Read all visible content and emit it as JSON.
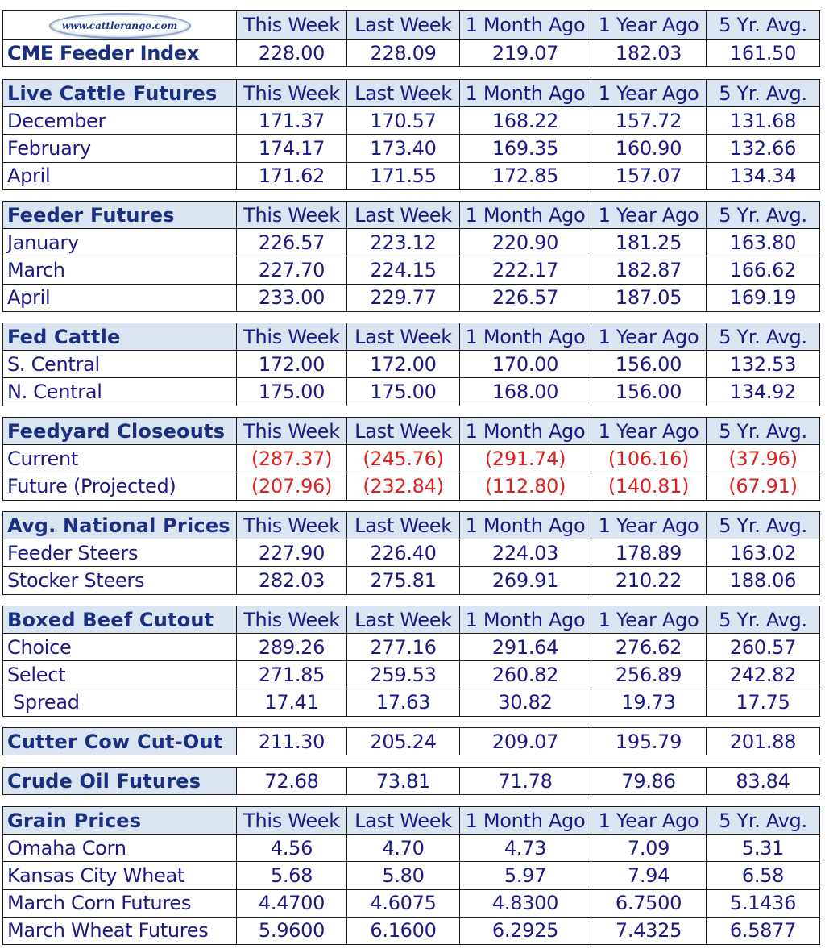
{
  "logo_text": "www.cattlerange.com",
  "colors": {
    "header_bg": "#dbe4f1",
    "text": "#1a1a86",
    "title": "#1a2f80",
    "negative": "#e02020"
  },
  "sections": [
    {
      "title": "CME Feeder Index",
      "headers": [
        "This Week",
        "Last Week",
        "1 Month Ago",
        "1 Year Ago",
        "5 Yr. Avg."
      ],
      "rows": [],
      "title_values": [
        "228.00",
        "228.09",
        "219.07",
        "182.03",
        "161.50"
      ]
    },
    {
      "title": "Live Cattle Futures",
      "headers": [
        "This Week",
        "Last Week",
        "1 Month Ago",
        "1 Year Ago",
        "5 Yr. Avg."
      ],
      "rows": [
        {
          "label": "December",
          "values": [
            "171.37",
            "170.57",
            "168.22",
            "157.72",
            "131.68"
          ]
        },
        {
          "label": "February",
          "values": [
            "174.17",
            "173.40",
            "169.35",
            "160.90",
            "132.66"
          ]
        },
        {
          "label": "April",
          "values": [
            "171.62",
            "171.55",
            "172.85",
            "157.07",
            "134.34"
          ]
        }
      ]
    },
    {
      "title": "Feeder Futures",
      "headers": [
        "This Week",
        "Last Week",
        "1 Month Ago",
        "1 Year Ago",
        "5 Yr. Avg."
      ],
      "rows": [
        {
          "label": "January",
          "values": [
            "226.57",
            "223.12",
            "220.90",
            "181.25",
            "163.80"
          ]
        },
        {
          "label": "March",
          "values": [
            "227.70",
            "224.15",
            "222.17",
            "182.87",
            "166.62"
          ]
        },
        {
          "label": "April",
          "values": [
            "233.00",
            "229.77",
            "226.57",
            "187.05",
            "169.19"
          ]
        }
      ]
    },
    {
      "title": "Fed Cattle",
      "headers": [
        "This Week",
        "Last Week",
        "1 Month Ago",
        "1 Year Ago",
        "5 Yr. Avg."
      ],
      "rows": [
        {
          "label": "S. Central",
          "values": [
            "172.00",
            "172.00",
            "170.00",
            "156.00",
            "132.53"
          ]
        },
        {
          "label": "N. Central",
          "values": [
            "175.00",
            "175.00",
            "168.00",
            "156.00",
            "134.92"
          ]
        }
      ]
    },
    {
      "title": "Feedyard Closeouts",
      "headers": [
        "This Week",
        "Last Week",
        "1 Month Ago",
        "1 Year Ago",
        "5 Yr. Avg."
      ],
      "rows": [
        {
          "label": "Current",
          "values": [
            "(287.37)",
            "(245.76)",
            "(291.74)",
            "(106.16)",
            "(37.96)"
          ],
          "negative": true
        },
        {
          "label": "Future (Projected)",
          "values": [
            "(207.96)",
            "(232.84)",
            "(112.80)",
            "(140.81)",
            "(67.91)"
          ],
          "negative": true
        }
      ]
    },
    {
      "title": "Avg. National Prices",
      "headers": [
        "This Week",
        "Last Week",
        "1 Month Ago",
        "1 Year Ago",
        "5 Yr. Avg."
      ],
      "rows": [
        {
          "label": "Feeder Steers",
          "values": [
            "227.90",
            "226.40",
            "224.03",
            "178.89",
            "163.02"
          ]
        },
        {
          "label": "Stocker Steers",
          "values": [
            "282.03",
            "275.81",
            "269.91",
            "210.22",
            "188.06"
          ]
        }
      ]
    },
    {
      "title": "Boxed Beef Cutout",
      "headers": [
        "This Week",
        "Last Week",
        "1 Month Ago",
        "1 Year Ago",
        "5 Yr. Avg."
      ],
      "rows": [
        {
          "label": "Choice",
          "values": [
            "289.26",
            "277.16",
            "291.64",
            "276.62",
            "260.57"
          ]
        },
        {
          "label": "Select",
          "values": [
            "271.85",
            "259.53",
            "260.82",
            "256.89",
            "242.82"
          ]
        },
        {
          "label": "Spread",
          "values": [
            "17.41",
            "17.63",
            "30.82",
            "19.73",
            "17.75"
          ],
          "indent": true
        }
      ]
    },
    {
      "title": "Cutter Cow Cut-Out",
      "headers": [],
      "rows": [],
      "title_values": [
        "211.30",
        "205.24",
        "209.07",
        "195.79",
        "201.88"
      ]
    },
    {
      "title": "Crude Oil Futures",
      "headers": [],
      "rows": [],
      "title_values": [
        "72.68",
        "73.81",
        "71.78",
        "79.86",
        "83.84"
      ]
    },
    {
      "title": "Grain Prices",
      "headers": [
        "This Week",
        "Last Week",
        "1 Month Ago",
        "1 Year Ago",
        "5 Yr. Avg."
      ],
      "rows": [
        {
          "label": "Omaha Corn",
          "values": [
            "4.56",
            "4.70",
            "4.73",
            "7.09",
            "5.31"
          ]
        },
        {
          "label": "Kansas City Wheat",
          "values": [
            "5.68",
            "5.80",
            "5.97",
            "7.94",
            "6.58"
          ]
        },
        {
          "label": "March Corn Futures",
          "values": [
            "4.4700",
            "4.6075",
            "4.8300",
            "6.7500",
            "5.1436"
          ]
        },
        {
          "label": "March Wheat Futures",
          "values": [
            "5.9600",
            "6.1600",
            "6.2925",
            "7.4325",
            "6.5877"
          ]
        }
      ]
    }
  ]
}
